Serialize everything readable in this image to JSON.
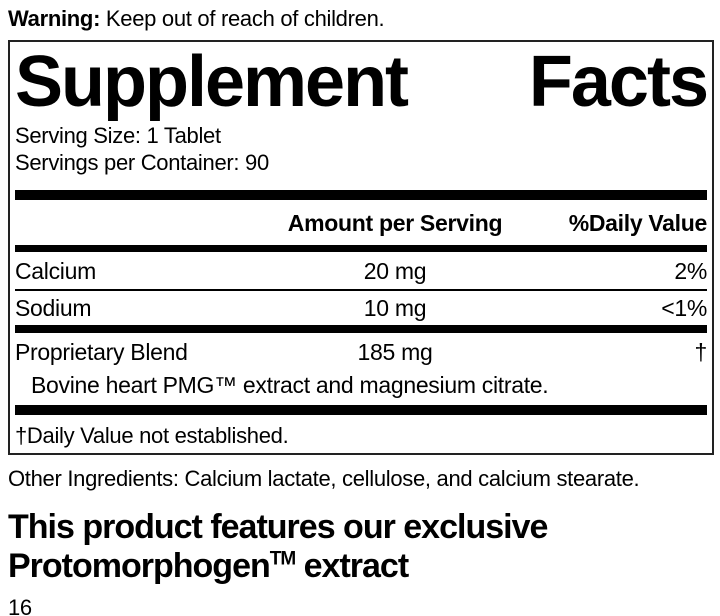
{
  "warning": {
    "label": "Warning:",
    "text": " Keep out of reach of children."
  },
  "panel": {
    "title_word1": "Supplement",
    "title_word2": "Facts",
    "serving_size": "Serving Size: 1 Tablet",
    "servings_per_container": "Servings per Container: 90",
    "header": {
      "amount": "Amount per Serving",
      "daily_value": "%Daily Value"
    },
    "rows": [
      {
        "name": "Calcium",
        "amount": "20 mg",
        "dv": "2%"
      },
      {
        "name": "Sodium",
        "amount": "10 mg",
        "dv": "<1%"
      },
      {
        "name": "Proprietary Blend",
        "amount": "185 mg",
        "dv": "†",
        "description": "Bovine heart PMG™ extract and magnesium citrate."
      }
    ],
    "footnote": "†Daily Value not established."
  },
  "other_ingredients": "Other Ingredients: Calcium lactate, cellulose, and calcium stearate.",
  "feature": {
    "line1": "This product features our exclusive",
    "line2_base": "Protomorphogen",
    "line2_tm": "TM",
    "line2_rest": " extract"
  },
  "page_number": "16",
  "colors": {
    "text": "#000000",
    "background": "#ffffff",
    "bar": "#000000",
    "border": "#222222"
  }
}
